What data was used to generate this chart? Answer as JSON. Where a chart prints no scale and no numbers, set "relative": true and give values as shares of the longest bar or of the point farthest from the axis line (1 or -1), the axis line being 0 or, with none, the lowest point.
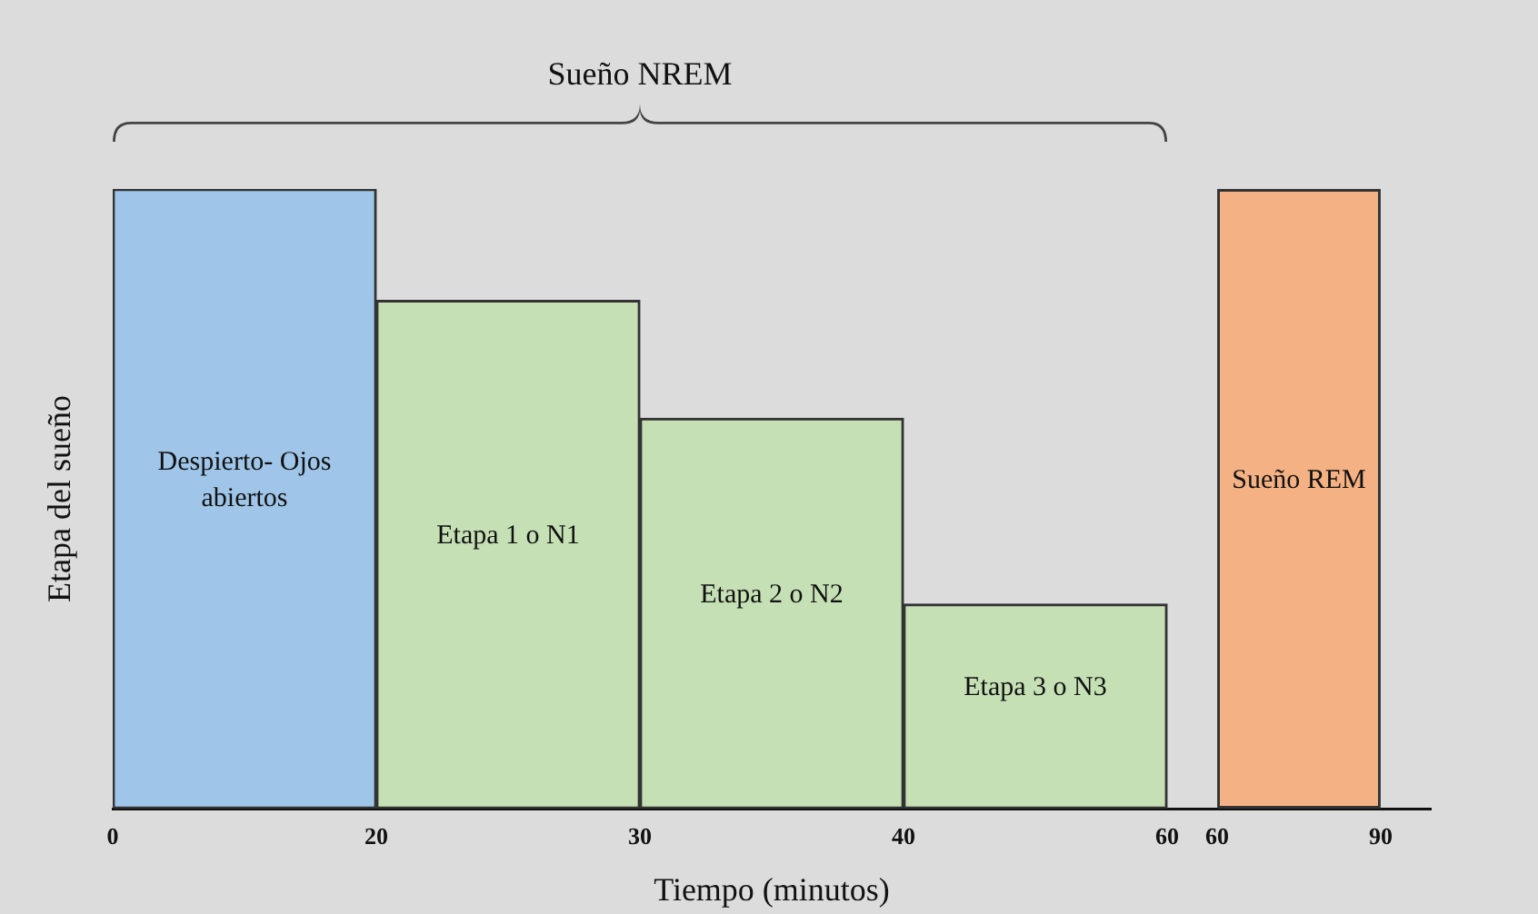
{
  "chart_data": {
    "type": "bar",
    "relative": true,
    "categories": [
      "Despierto- Ojos abiertos",
      "Etapa 1 o N1",
      "Etapa 2 o N2",
      "Etapa 3 o N3",
      "Sueño REM"
    ],
    "values": [
      1,
      0.82,
      0.63,
      0.33,
      1
    ],
    "colors": [
      "#9fc5e8",
      "#c5e0b4",
      "#c5e0b4",
      "#c5e0b4",
      "#f4b183"
    ],
    "xlabel": "Tiempo (minutos)",
    "ylabel": "Etapa del sueño",
    "annotations": [
      "Sueño NREM",
      "0",
      "20",
      "30",
      "40",
      "60",
      "60",
      "90"
    ],
    "legend": false,
    "grid": false
  }
}
